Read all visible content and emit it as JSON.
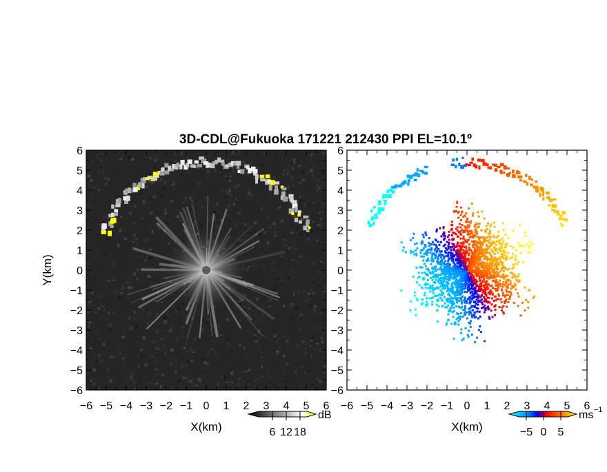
{
  "title": "3D-CDL@Fukuoka 171221 212430 PPI EL=10.1º",
  "chart_data": [
    {
      "type": "heatmap",
      "name": "reflectivity-ppi",
      "xlabel": "X(km)",
      "ylabel": "Y(km)",
      "xlim": [
        -6,
        6
      ],
      "ylim": [
        -6,
        6
      ],
      "xticks": [
        "−6",
        "−5",
        "−4",
        "−3",
        "−2",
        "−1",
        "0",
        "1",
        "2",
        "3",
        "4",
        "5",
        "6"
      ],
      "yticks": [
        "6",
        "5",
        "4",
        "3",
        "2",
        "1",
        "0",
        "−1",
        "−2",
        "−3",
        "−4",
        "−5",
        "−6"
      ],
      "colormap": [
        "#000000",
        "#ffffff",
        "#ffff00"
      ],
      "colorbar": {
        "unit": "dB",
        "ticks": [
          "6",
          "12",
          "18"
        ],
        "range": [
          0,
          21
        ]
      },
      "features": {
        "radar_center": [
          0,
          0
        ],
        "echo_arc_radius_km": 5.4
      }
    },
    {
      "type": "heatmap",
      "name": "doppler-velocity-ppi",
      "xlabel": "X(km)",
      "xlim": [
        -6,
        6
      ],
      "ylim": [
        -6,
        6
      ],
      "xticks": [
        "−6",
        "−5",
        "−4",
        "−3",
        "−2",
        "−1",
        "0",
        "1",
        "2",
        "3",
        "4",
        "5",
        "6"
      ],
      "yticks": [
        "6",
        "5",
        "4",
        "3",
        "2",
        "1",
        "0",
        "−1",
        "−2",
        "−3",
        "−4",
        "−5",
        "−6"
      ],
      "colormap": [
        "#00ffff",
        "#0000ff",
        "#ff0000",
        "#ffff00"
      ],
      "colorbar": {
        "unit": "ms",
        "unit_exp": "−1",
        "ticks": [
          "−5",
          "0",
          "5"
        ],
        "range": [
          -7,
          7
        ]
      }
    }
  ]
}
